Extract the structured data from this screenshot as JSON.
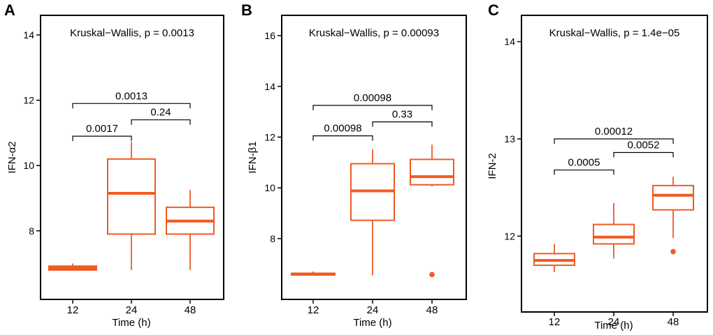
{
  "chart_data": [
    {
      "type": "box",
      "panel_label": "A",
      "title": "Kruskal−Wallis, p = 0.0013",
      "xlabel": "Time (h)",
      "ylabel": "IFN-α2",
      "categories": [
        "12",
        "24",
        "48"
      ],
      "ylim": [
        5.9,
        14.6
      ],
      "yticks": [
        8,
        10,
        12,
        14
      ],
      "boxes": [
        {
          "category": "12",
          "whisker_low": 6.78,
          "q1": 6.8,
          "median": 6.86,
          "q3": 6.92,
          "whisker_high": 7.0,
          "outliers": []
        },
        {
          "category": "24",
          "whisker_low": 6.8,
          "q1": 7.9,
          "median": 9.15,
          "q3": 10.2,
          "whisker_high": 10.72,
          "outliers": []
        },
        {
          "category": "48",
          "whisker_low": 6.8,
          "q1": 7.9,
          "median": 8.3,
          "q3": 8.72,
          "whisker_high": 9.25,
          "outliers": []
        }
      ],
      "comparisons": [
        {
          "from": "12",
          "to": "24",
          "label": "0.0017",
          "y": 10.9
        },
        {
          "from": "24",
          "to": "48",
          "label": "0.24",
          "y": 11.4
        },
        {
          "from": "12",
          "to": "48",
          "label": "0.0013",
          "y": 11.9
        }
      ]
    },
    {
      "type": "box",
      "panel_label": "B",
      "title": "Kruskal−Wallis, p = 0.00093",
      "xlabel": "Time (h)",
      "ylabel": "IFN-β1",
      "categories": [
        "12",
        "24",
        "48"
      ],
      "ylim": [
        5.6,
        16.8
      ],
      "yticks": [
        8,
        10,
        12,
        14,
        16
      ],
      "boxes": [
        {
          "category": "12",
          "whisker_low": 6.55,
          "q1": 6.56,
          "median": 6.6,
          "q3": 6.63,
          "whisker_high": 6.7,
          "outliers": []
        },
        {
          "category": "24",
          "whisker_low": 6.55,
          "q1": 8.72,
          "median": 9.88,
          "q3": 10.95,
          "whisker_high": 11.52,
          "outliers": []
        },
        {
          "category": "48",
          "whisker_low": 10.05,
          "q1": 10.12,
          "median": 10.44,
          "q3": 11.12,
          "whisker_high": 11.7,
          "outliers": [
            6.58
          ]
        }
      ],
      "comparisons": [
        {
          "from": "12",
          "to": "24",
          "label": "0.00098",
          "y": 12.05
        },
        {
          "from": "24",
          "to": "48",
          "label": "0.33",
          "y": 12.6
        },
        {
          "from": "12",
          "to": "48",
          "label": "0.00098",
          "y": 13.25
        }
      ]
    },
    {
      "type": "box",
      "panel_label": "C",
      "title": "Kruskal−Wallis, p = 1.4e−05",
      "xlabel": "Time (h)",
      "ylabel": "IFN-2",
      "categories": [
        "12",
        "24",
        "48"
      ],
      "ylim": [
        11.22,
        14.27
      ],
      "yticks": [
        12,
        13,
        14
      ],
      "boxes": [
        {
          "category": "12",
          "whisker_low": 11.63,
          "q1": 11.7,
          "median": 11.75,
          "q3": 11.82,
          "whisker_high": 11.92,
          "outliers": []
        },
        {
          "category": "24",
          "whisker_low": 11.77,
          "q1": 11.92,
          "median": 11.99,
          "q3": 12.12,
          "whisker_high": 12.34,
          "outliers": []
        },
        {
          "category": "48",
          "whisker_low": 11.98,
          "q1": 12.27,
          "median": 12.42,
          "q3": 12.52,
          "whisker_high": 12.61,
          "outliers": [
            11.84
          ]
        }
      ],
      "comparisons": [
        {
          "from": "12",
          "to": "24",
          "label": "0.0005",
          "y": 12.68
        },
        {
          "from": "24",
          "to": "48",
          "label": "0.0052",
          "y": 12.86
        },
        {
          "from": "12",
          "to": "48",
          "label": "0.00012",
          "y": 13.0
        }
      ]
    }
  ],
  "colors": {
    "box": "#f05a22",
    "axis": "#000000",
    "text": "#000000"
  }
}
